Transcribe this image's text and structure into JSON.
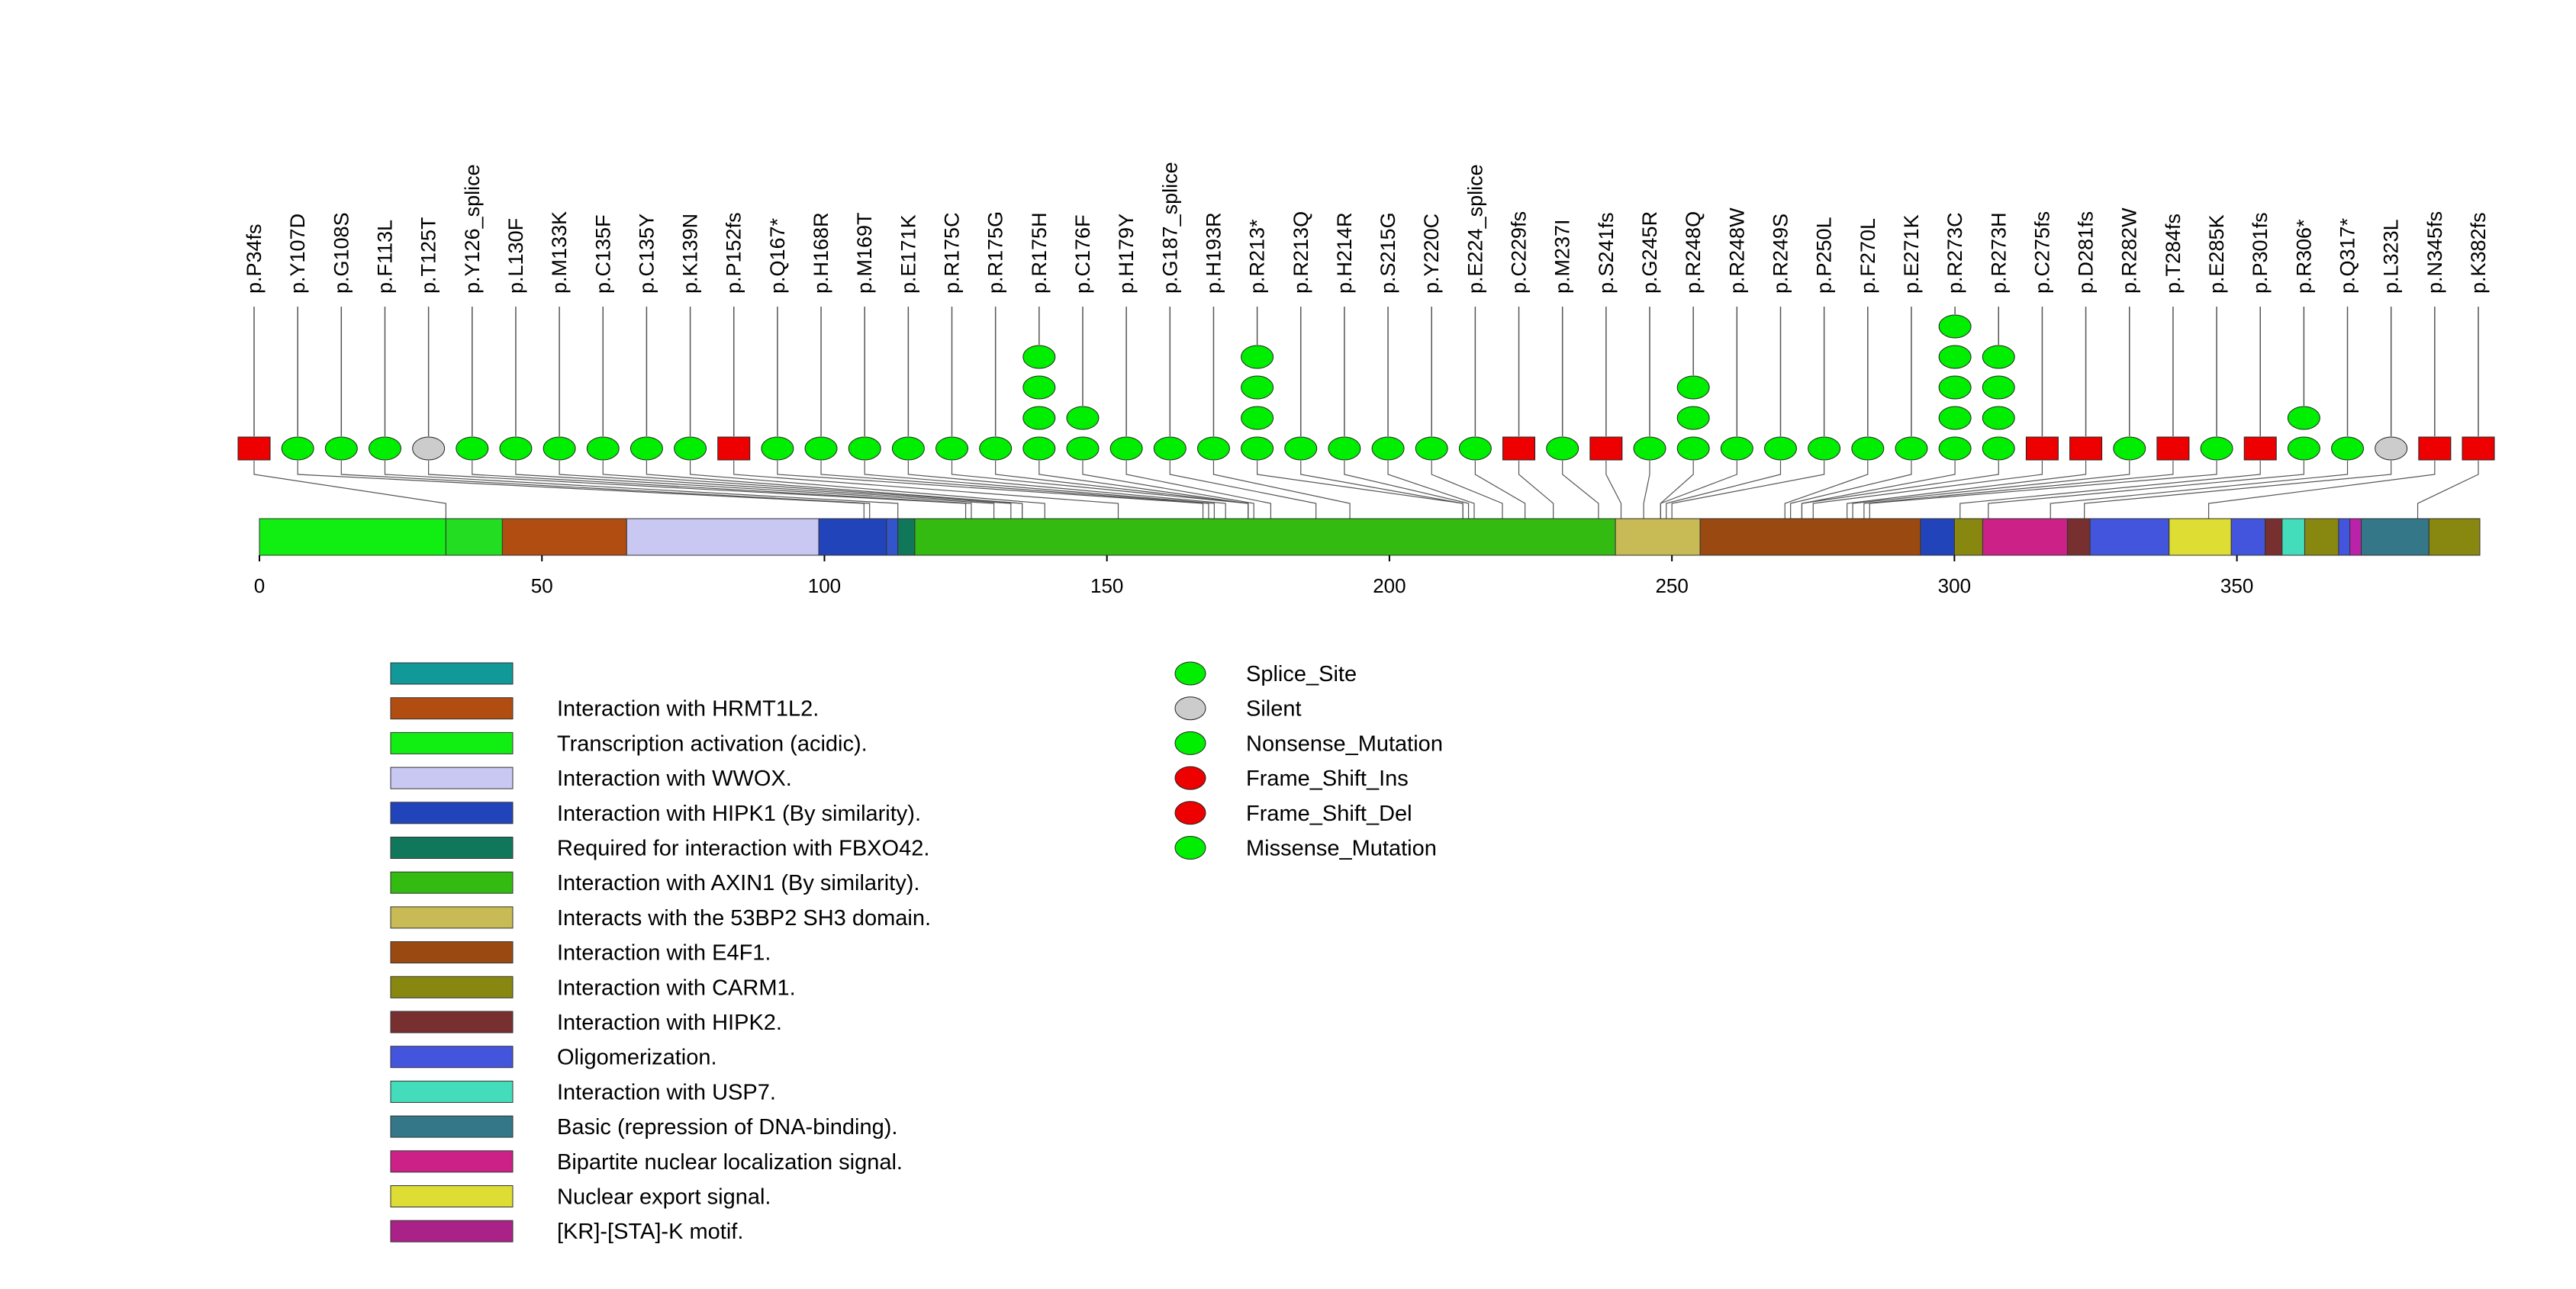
{
  "chart_data": {
    "type": "lollipop",
    "axis": {
      "min": 0,
      "max": 393,
      "ticks": [
        0,
        50,
        100,
        150,
        200,
        250,
        300,
        350
      ]
    },
    "mutations": [
      {
        "label": "p.P34fs",
        "type": "Frame_Shift_Del",
        "count": 1,
        "pos": 33
      },
      {
        "label": "p.Y107D",
        "type": "Missense_Mutation",
        "count": 1,
        "pos": 107
      },
      {
        "label": "p.G108S",
        "type": "Missense_Mutation",
        "count": 1,
        "pos": 108
      },
      {
        "label": "p.F113L",
        "type": "Missense_Mutation",
        "count": 1,
        "pos": 113
      },
      {
        "label": "p.T125T",
        "type": "Silent",
        "count": 1,
        "pos": 125
      },
      {
        "label": "p.Y126_splice",
        "type": "Splice_Site",
        "count": 1,
        "pos": 126
      },
      {
        "label": "p.L130F",
        "type": "Missense_Mutation",
        "count": 1,
        "pos": 130
      },
      {
        "label": "p.M133K",
        "type": "Missense_Mutation",
        "count": 1,
        "pos": 133
      },
      {
        "label": "p.C135F",
        "type": "Missense_Mutation",
        "count": 1,
        "pos": 135
      },
      {
        "label": "p.C135Y",
        "type": "Missense_Mutation",
        "count": 1,
        "pos": 135
      },
      {
        "label": "p.K139N",
        "type": "Missense_Mutation",
        "count": 1,
        "pos": 139
      },
      {
        "label": "p.P152fs",
        "type": "Frame_Shift_Del",
        "count": 1,
        "pos": 152
      },
      {
        "label": "p.Q167*",
        "type": "Nonsense_Mutation",
        "count": 1,
        "pos": 167
      },
      {
        "label": "p.H168R",
        "type": "Missense_Mutation",
        "count": 1,
        "pos": 168
      },
      {
        "label": "p.M169T",
        "type": "Missense_Mutation",
        "count": 1,
        "pos": 169
      },
      {
        "label": "p.E171K",
        "type": "Missense_Mutation",
        "count": 1,
        "pos": 171
      },
      {
        "label": "p.R175C",
        "type": "Missense_Mutation",
        "count": 1,
        "pos": 175
      },
      {
        "label": "p.R175G",
        "type": "Missense_Mutation",
        "count": 1,
        "pos": 175
      },
      {
        "label": "p.R175H",
        "type": "Missense_Mutation",
        "count": 4,
        "pos": 175
      },
      {
        "label": "p.C176F",
        "type": "Missense_Mutation",
        "count": 2,
        "pos": 176
      },
      {
        "label": "p.H179Y",
        "type": "Missense_Mutation",
        "count": 1,
        "pos": 179
      },
      {
        "label": "p.G187_splice",
        "type": "Splice_Site",
        "count": 1,
        "pos": 187
      },
      {
        "label": "p.H193R",
        "type": "Missense_Mutation",
        "count": 1,
        "pos": 193
      },
      {
        "label": "p.R213*",
        "type": "Nonsense_Mutation",
        "count": 4,
        "pos": 213
      },
      {
        "label": "p.R213Q",
        "type": "Missense_Mutation",
        "count": 1,
        "pos": 213
      },
      {
        "label": "p.H214R",
        "type": "Missense_Mutation",
        "count": 1,
        "pos": 214
      },
      {
        "label": "p.S215G",
        "type": "Missense_Mutation",
        "count": 1,
        "pos": 215
      },
      {
        "label": "p.Y220C",
        "type": "Missense_Mutation",
        "count": 1,
        "pos": 220
      },
      {
        "label": "p.E224_splice",
        "type": "Splice_Site",
        "count": 1,
        "pos": 224
      },
      {
        "label": "p.C229fs",
        "type": "Frame_Shift_Del",
        "count": 1,
        "pos": 229
      },
      {
        "label": "p.M237I",
        "type": "Missense_Mutation",
        "count": 1,
        "pos": 237
      },
      {
        "label": "p.S241fs",
        "type": "Frame_Shift_Del",
        "count": 1,
        "pos": 241
      },
      {
        "label": "p.G245R",
        "type": "Missense_Mutation",
        "count": 1,
        "pos": 245
      },
      {
        "label": "p.R248Q",
        "type": "Missense_Mutation",
        "count": 3,
        "pos": 248
      },
      {
        "label": "p.R248W",
        "type": "Missense_Mutation",
        "count": 1,
        "pos": 248
      },
      {
        "label": "p.R249S",
        "type": "Missense_Mutation",
        "count": 1,
        "pos": 249
      },
      {
        "label": "p.P250L",
        "type": "Missense_Mutation",
        "count": 1,
        "pos": 250
      },
      {
        "label": "p.F270L",
        "type": "Missense_Mutation",
        "count": 1,
        "pos": 270
      },
      {
        "label": "p.E271K",
        "type": "Missense_Mutation",
        "count": 1,
        "pos": 271
      },
      {
        "label": "p.R273C",
        "type": "Missense_Mutation",
        "count": 5,
        "pos": 273
      },
      {
        "label": "p.R273H",
        "type": "Missense_Mutation",
        "count": 4,
        "pos": 273
      },
      {
        "label": "p.C275fs",
        "type": "Frame_Shift_Del",
        "count": 1,
        "pos": 275
      },
      {
        "label": "p.D281fs",
        "type": "Frame_Shift_Del",
        "count": 1,
        "pos": 281
      },
      {
        "label": "p.R282W",
        "type": "Missense_Mutation",
        "count": 1,
        "pos": 282
      },
      {
        "label": "p.T284fs",
        "type": "Frame_Shift_Del",
        "count": 1,
        "pos": 284
      },
      {
        "label": "p.E285K",
        "type": "Missense_Mutation",
        "count": 1,
        "pos": 285
      },
      {
        "label": "p.P301fs",
        "type": "Frame_Shift_Del",
        "count": 1,
        "pos": 301
      },
      {
        "label": "p.R306*",
        "type": "Nonsense_Mutation",
        "count": 2,
        "pos": 306
      },
      {
        "label": "p.Q317*",
        "type": "Nonsense_Mutation",
        "count": 1,
        "pos": 317
      },
      {
        "label": "p.L323L",
        "type": "Silent",
        "count": 1,
        "pos": 323
      },
      {
        "label": "p.N345fs",
        "type": "Frame_Shift_Del",
        "count": 1,
        "pos": 345
      },
      {
        "label": "p.K382fs",
        "type": "Frame_Shift_Del",
        "count": 1,
        "pos": 382
      }
    ],
    "domains": [
      {
        "start": 0,
        "end": 33,
        "color": "#11ee11"
      },
      {
        "start": 33,
        "end": 43,
        "color": "#22dd22"
      },
      {
        "start": 43,
        "end": 65,
        "color": "#b24d11"
      },
      {
        "start": 65,
        "end": 99,
        "color": "#c8c8f2"
      },
      {
        "start": 99,
        "end": 111,
        "color": "#2244bb"
      },
      {
        "start": 111,
        "end": 113,
        "color": "#3355cc"
      },
      {
        "start": 113,
        "end": 116,
        "color": "#11775a"
      },
      {
        "start": 116,
        "end": 240,
        "color": "#33bb11"
      },
      {
        "start": 240,
        "end": 255,
        "color": "#c8bb55"
      },
      {
        "start": 255,
        "end": 294,
        "color": "#9a4a11"
      },
      {
        "start": 294,
        "end": 300,
        "color": "#2244bb"
      },
      {
        "start": 300,
        "end": 305,
        "color": "#888811"
      },
      {
        "start": 305,
        "end": 320,
        "color": "#cc2288"
      },
      {
        "start": 320,
        "end": 324,
        "color": "#772f2f"
      },
      {
        "start": 324,
        "end": 338,
        "color": "#4455dd"
      },
      {
        "start": 338,
        "end": 349,
        "color": "#dddd33"
      },
      {
        "start": 349,
        "end": 355,
        "color": "#4455dd"
      },
      {
        "start": 355,
        "end": 358,
        "color": "#772f2f"
      },
      {
        "start": 358,
        "end": 362,
        "color": "#44ddbb"
      },
      {
        "start": 362,
        "end": 368,
        "color": "#888811"
      },
      {
        "start": 368,
        "end": 370,
        "color": "#4455dd"
      },
      {
        "start": 370,
        "end": 372,
        "color": "#bb22aa"
      },
      {
        "start": 372,
        "end": 384,
        "color": "#337788"
      },
      {
        "start": 384,
        "end": 393,
        "color": "#888811"
      }
    ],
    "domain_legend": [
      {
        "label": "",
        "color": "#119999"
      },
      {
        "label": "Interaction with HRMT1L2.",
        "color": "#b24d11"
      },
      {
        "label": "Transcription activation (acidic).",
        "color": "#11ee11"
      },
      {
        "label": "Interaction with WWOX.",
        "color": "#c8c8f2"
      },
      {
        "label": "Interaction with HIPK1 (By similarity).",
        "color": "#2244bb"
      },
      {
        "label": "Required for interaction with FBXO42.",
        "color": "#11775a"
      },
      {
        "label": "Interaction with AXIN1 (By similarity).",
        "color": "#33bb11"
      },
      {
        "label": "Interacts with the 53BP2 SH3 domain.",
        "color": "#c8bb55"
      },
      {
        "label": "Interaction with E4F1.",
        "color": "#9a4a11"
      },
      {
        "label": "Interaction with CARM1.",
        "color": "#888811"
      },
      {
        "label": "Interaction with HIPK2.",
        "color": "#772f2f"
      },
      {
        "label": "Oligomerization.",
        "color": "#4455dd"
      },
      {
        "label": "Interaction with USP7.",
        "color": "#44ddbb"
      },
      {
        "label": "Basic (repression of DNA-binding).",
        "color": "#337788"
      },
      {
        "label": "Bipartite nuclear localization signal.",
        "color": "#cc2288"
      },
      {
        "label": "Nuclear export signal.",
        "color": "#dddd33"
      },
      {
        "label": "[KR]-[STA]-K motif.",
        "color": "#aa2288"
      }
    ],
    "type_legend": [
      {
        "label": "Splice_Site",
        "color": "#00ee00"
      },
      {
        "label": "Silent",
        "color": "#cccccc"
      },
      {
        "label": "Nonsense_Mutation",
        "color": "#00ee00"
      },
      {
        "label": "Frame_Shift_Ins",
        "color": "#ee0000"
      },
      {
        "label": "Frame_Shift_Del",
        "color": "#ee0000"
      },
      {
        "label": "Missense_Mutation",
        "color": "#00ee00"
      }
    ],
    "type_colors": {
      "Splice_Site": "#00ee00",
      "Silent": "#cccccc",
      "Nonsense_Mutation": "#00ee00",
      "Frame_Shift_Ins": "#ee0000",
      "Frame_Shift_Del": "#ee0000",
      "Missense_Mutation": "#00ee00"
    }
  }
}
